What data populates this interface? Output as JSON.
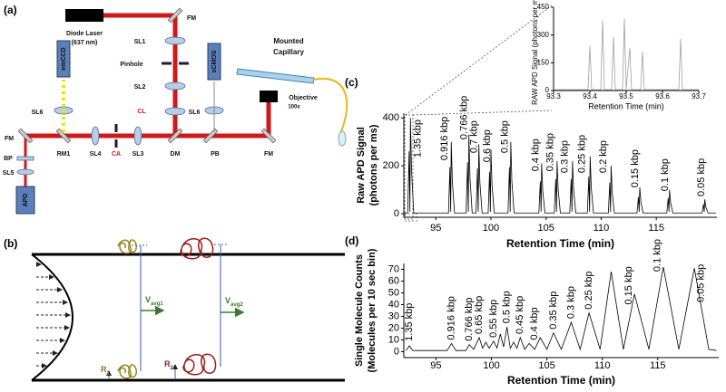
{
  "diagram_a": {
    "panel_label": "(a)",
    "labels": [
      "FM",
      "Diode Laser",
      "(637 nm)",
      "SL1",
      "Pinhole",
      "SL2",
      "CL",
      "sCMOS",
      "Mounted",
      "Capillary",
      "SL6",
      "Objective",
      "100x",
      "emCCD",
      "SL6",
      "FM",
      "BP",
      "SL5",
      "APD",
      "RM1",
      "SL4",
      "CA",
      "SL3",
      "DM",
      "PB",
      "FM"
    ]
  },
  "diagram_b": {
    "panel_label": "(b)",
    "v1": {
      "main": "V",
      "sub": "avg1"
    },
    "v2": {
      "main": "V",
      "sub": "avg2"
    },
    "r1": {
      "main": "R",
      "sub": "1"
    },
    "r2": {
      "main": "R",
      "sub": "2"
    }
  },
  "chart_data": [
    {
      "type": "line",
      "panel_label": "(c)",
      "xlabel": "Retention Time (min)",
      "ylabel": [
        "Raw APD Signal",
        "(photons per ms)"
      ],
      "color": "#000000",
      "xlim": [
        92.1,
        120.5
      ],
      "ylim": [
        -15,
        420
      ],
      "xticks": [
        95,
        100,
        105,
        110,
        115
      ],
      "yticks": [
        0,
        200,
        400
      ],
      "x": [
        92.2,
        92.45,
        92.58,
        92.65,
        92.7,
        92.8,
        93.0,
        96.15,
        96.28,
        96.35,
        96.4,
        96.5,
        96.7,
        97.75,
        97.88,
        97.95,
        98.0,
        98.1,
        98.3,
        98.65,
        98.78,
        98.85,
        98.9,
        99.0,
        99.2,
        99.75,
        99.88,
        99.95,
        100.0,
        100.1,
        100.3,
        101.55,
        101.68,
        101.75,
        101.8,
        101.9,
        102.1,
        104.35,
        104.48,
        104.55,
        104.6,
        104.7,
        104.9,
        105.75,
        105.88,
        105.95,
        106.0,
        106.1,
        106.3,
        107.15,
        107.28,
        107.35,
        107.4,
        107.5,
        107.7,
        108.75,
        108.88,
        108.95,
        109.0,
        109.1,
        109.3,
        110.65,
        110.78,
        110.85,
        110.9,
        111.0,
        111.2,
        113.25,
        113.38,
        113.45,
        113.5,
        113.6,
        113.8,
        115.95,
        116.08,
        116.15,
        116.2,
        116.3,
        116.5,
        119.15,
        119.28,
        119.35,
        119.4,
        119.5,
        119.7,
        120.4
      ],
      "values": [
        3,
        3,
        260,
        8,
        400,
        180,
        3,
        3,
        195,
        8,
        300,
        135,
        3,
        3,
        215,
        8,
        330,
        150,
        3,
        3,
        190,
        8,
        290,
        130,
        3,
        3,
        175,
        8,
        270,
        120,
        3,
        3,
        195,
        8,
        300,
        135,
        3,
        3,
        135,
        8,
        210,
        95,
        3,
        3,
        145,
        8,
        220,
        100,
        3,
        3,
        145,
        8,
        220,
        100,
        3,
        3,
        155,
        8,
        240,
        110,
        3,
        3,
        130,
        8,
        200,
        90,
        3,
        3,
        70,
        8,
        110,
        50,
        3,
        3,
        65,
        8,
        100,
        45,
        3,
        3,
        40,
        8,
        60,
        27,
        3,
        3
      ],
      "annotations": [
        {
          "text": "1.35 kbp",
          "x": 93.4,
          "y": 234
        },
        {
          "text": "0.916 kbp",
          "x": 95.8,
          "y": 223
        },
        {
          "text": "0.766 kbp",
          "x": 97.6,
          "y": 310
        },
        {
          "text": "0.7 kbp",
          "x": 98.5,
          "y": 253
        },
        {
          "text": "0.6 kbp",
          "x": 99.7,
          "y": 215
        },
        {
          "text": "0.5 kbp",
          "x": 101.3,
          "y": 253
        },
        {
          "text": "0.4 kbp",
          "x": 104.1,
          "y": 177
        },
        {
          "text": "0.35 kbp",
          "x": 105.4,
          "y": 177
        },
        {
          "text": "0.3 kbp",
          "x": 106.7,
          "y": 170
        },
        {
          "text": "0.25 kbp",
          "x": 108.3,
          "y": 170
        },
        {
          "text": "0.2 kbp",
          "x": 110.2,
          "y": 170
        },
        {
          "text": "0.15 kbp",
          "x": 113.1,
          "y": 109
        },
        {
          "text": "0.1 kbp",
          "x": 115.8,
          "y": 94
        },
        {
          "text": "0.05 kbp",
          "x": 119.1,
          "y": 72
        }
      ]
    },
    {
      "type": "line",
      "xlabel": "Retention Time (min)",
      "ylabel": [
        "RAW APD Signal (photons per ms)"
      ],
      "color": "#a0a0a0",
      "xlim": [
        93.3,
        93.7
      ],
      "ylim": [
        0,
        450
      ],
      "xticks": [
        93.3,
        93.4,
        93.5,
        93.6,
        93.7
      ],
      "yticks": [
        0,
        150,
        300,
        450
      ],
      "x": [
        93.3,
        93.395,
        93.4,
        93.405,
        93.43,
        93.435,
        93.44,
        93.46,
        93.465,
        93.47,
        93.49,
        93.495,
        93.5,
        93.51,
        93.515,
        93.54,
        93.545,
        93.55,
        93.645,
        93.65,
        93.655,
        93.7
      ],
      "values": [
        5,
        5,
        240,
        5,
        5,
        380,
        5,
        5,
        290,
        5,
        5,
        390,
        5,
        230,
        5,
        5,
        210,
        5,
        5,
        280,
        5,
        5
      ]
    },
    {
      "type": "line",
      "panel_label": "(d)",
      "xlabel": "Retention Time (min)",
      "ylabel": [
        "Single Molecule Counts",
        "(Molecules per 10 sec bin)"
      ],
      "color": "#000000",
      "xlim": [
        92.1,
        120.5
      ],
      "ylim": [
        -5,
        75
      ],
      "xticks": [
        95,
        100,
        105,
        110,
        115
      ],
      "yticks": [
        0,
        10,
        20,
        30,
        40,
        50,
        60,
        70
      ],
      "x": [
        92.3,
        92.6,
        92.9,
        96.0,
        96.4,
        96.8,
        97.7,
        98.0,
        98.4,
        98.9,
        99.2,
        99.5,
        99.8,
        100.2,
        100.5,
        100.8,
        101.1,
        101.4,
        101.7,
        102.0,
        102.3,
        102.6,
        103.0,
        103.4,
        103.9,
        104.4,
        105.0,
        105.6,
        106.3,
        107.2,
        108.0,
        108.8,
        109.8,
        110.8,
        111.9,
        112.9,
        114.2,
        115.5,
        116.9,
        118.3,
        119.6,
        120.3
      ],
      "values": [
        1,
        5,
        1,
        1,
        7,
        1,
        1,
        6,
        2,
        12,
        3,
        8,
        3,
        9,
        3,
        15,
        4,
        21,
        3,
        8,
        3,
        12,
        2,
        7,
        2,
        12,
        2,
        16,
        2,
        25,
        2,
        33,
        2,
        68,
        2,
        49,
        2,
        72,
        2,
        71,
        2,
        1
      ],
      "annotations": [
        {
          "text": "1.35 kbp",
          "x": 92.6,
          "y": 9
        },
        {
          "text": "0.916 kbp",
          "x": 96.4,
          "y": 10
        },
        {
          "text": "0.766 kbp",
          "x": 98.0,
          "y": 9
        },
        {
          "text": "0.65 kbp",
          "x": 98.9,
          "y": 15
        },
        {
          "text": "0.55 kbp",
          "x": 100.2,
          "y": 12
        },
        {
          "text": "0.5 kbp",
          "x": 101.4,
          "y": 24
        },
        {
          "text": "0.45 kbp",
          "x": 102.6,
          "y": 15
        },
        {
          "text": "0.4 kbp",
          "x": 103.9,
          "y": 10
        },
        {
          "text": "0.35 kbp",
          "x": 105.6,
          "y": 19
        },
        {
          "text": "0.3 kbp",
          "x": 107.2,
          "y": 28
        },
        {
          "text": "0.25 kbp",
          "x": 108.8,
          "y": 36
        },
        {
          "text": "0.15 kbp",
          "x": 112.4,
          "y": 40
        },
        {
          "text": "0.1 kbp",
          "x": 115.0,
          "y": 68
        },
        {
          "text": "0.05 kbp",
          "x": 118.9,
          "y": 42
        }
      ]
    }
  ]
}
